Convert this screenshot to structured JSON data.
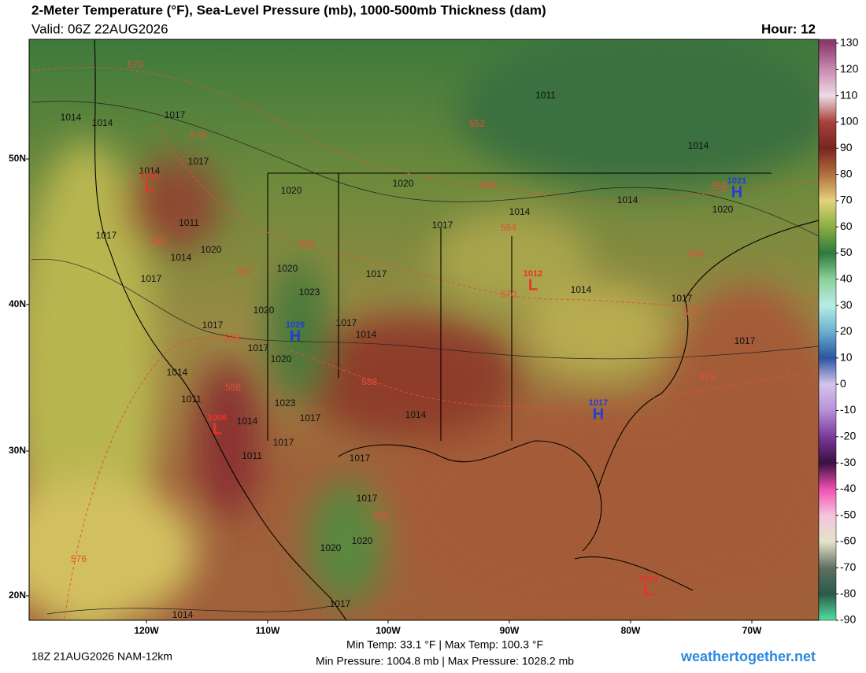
{
  "header": {
    "title": "2-Meter Temperature (°F), Sea-Level Pressure (mb), 1000-500mb Thickness (dam)",
    "valid": "Valid: 06Z 22AUG2026",
    "hour": "Hour: 12"
  },
  "colorbar": {
    "ticks": [
      130,
      120,
      110,
      100,
      90,
      80,
      70,
      60,
      50,
      40,
      30,
      20,
      10,
      0,
      -10,
      -20,
      -30,
      -40,
      -50,
      -60,
      -70,
      -80,
      -90
    ],
    "colors": [
      "#8c3a6d",
      "#c98ab0",
      "#ecdce4",
      "#a8413a",
      "#7a2420",
      "#b07040",
      "#e2d27a",
      "#8aae44",
      "#2f7a3c",
      "#8ed09a",
      "#b8ece4",
      "#6aaed0",
      "#2a56a0",
      "#d4c4ec",
      "#b890d8",
      "#7a3a9a",
      "#3a1040",
      "#f050b0",
      "#f4c4e0",
      "#e4e4c8",
      "#607060",
      "#2a5a4a",
      "#50e0a0"
    ]
  },
  "latitude_labels": [
    "50N",
    "40N",
    "30N",
    "20N"
  ],
  "longitude_labels": [
    "120W",
    "110W",
    "100W",
    "90W",
    "80W",
    "70W"
  ],
  "isobar_labels": [
    1014,
    1014,
    1017,
    1017,
    1014,
    1020,
    1020,
    1011,
    1014,
    1014,
    1020,
    1014,
    1017,
    1017,
    1011,
    1020,
    1014,
    1017,
    1020,
    1017,
    1023,
    1014,
    1017,
    1020,
    1017,
    1014,
    1017,
    1017,
    1020,
    1014,
    1011,
    1023,
    1017,
    1014,
    1017,
    1014,
    1017,
    1011,
    1017,
    1020,
    1020,
    1017,
    1014,
    1017
  ],
  "thickness_labels": [
    570,
    576,
    582,
    582,
    582,
    588,
    588,
    588,
    552,
    558,
    564,
    570,
    564,
    558,
    570,
    576,
    582,
    576
  ],
  "pressure_centers": [
    {
      "type": "L",
      "value": 1011
    },
    {
      "type": "L",
      "value": 1006
    },
    {
      "type": "L",
      "value": 1012
    },
    {
      "type": "L",
      "value": 1014
    },
    {
      "type": "H",
      "value": 1026
    },
    {
      "type": "H",
      "value": 1017
    },
    {
      "type": "H",
      "value": 1021
    }
  ],
  "footer": {
    "run": "18Z 21AUG2026 NAM-12km",
    "temps": "Min Temp:  33.1 °F | Max Temp: 100.3 °F",
    "pressures": "Min Pressure: 1004.8 mb | Max Pressure: 1028.2 mb",
    "site": "weathertogether.net"
  }
}
